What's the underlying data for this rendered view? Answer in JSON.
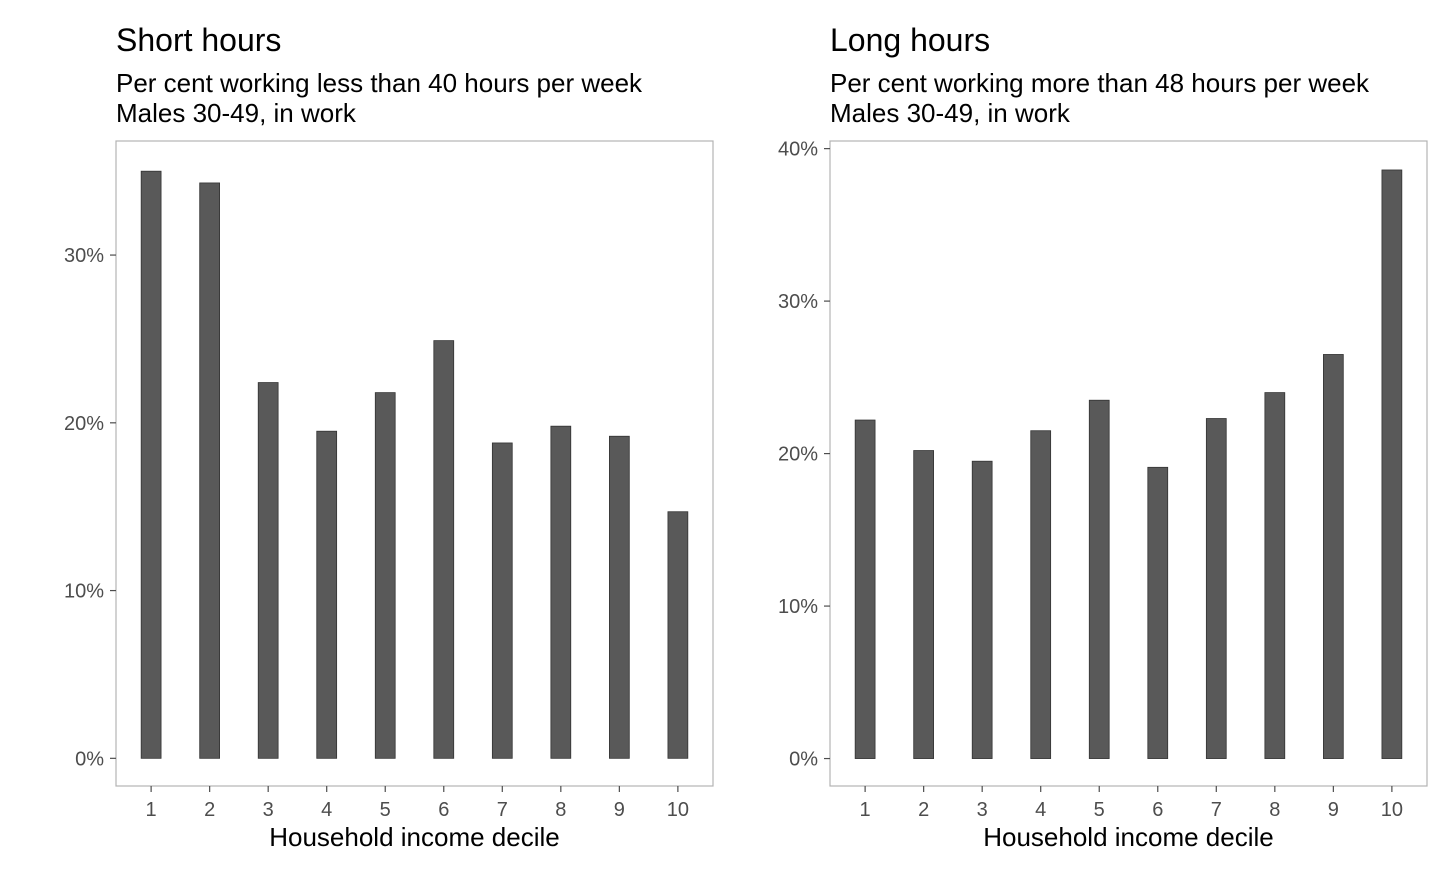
{
  "chart_data": [
    {
      "type": "bar",
      "title": "Short hours",
      "subtitle": [
        "Per cent working less than 40 hours per week",
        "Males 30-49, in work"
      ],
      "xlabel": "Household income decile",
      "ylabel": "",
      "categories": [
        "1",
        "2",
        "3",
        "4",
        "5",
        "6",
        "7",
        "8",
        "9",
        "10"
      ],
      "values": [
        35.0,
        34.3,
        22.4,
        19.5,
        21.8,
        24.9,
        18.8,
        19.8,
        19.2,
        14.7
      ],
      "yticks": [
        0,
        10,
        20,
        30
      ],
      "ytick_labels": [
        "0%",
        "10%",
        "20%",
        "30%"
      ],
      "ylim": [
        -1.65,
        36.8
      ],
      "bar_color": "#595959",
      "grid": false
    },
    {
      "type": "bar",
      "title": "Long hours",
      "subtitle": [
        "Per cent working more than 48 hours per week",
        "Males 30-49, in work"
      ],
      "xlabel": "Household income decile",
      "ylabel": "",
      "categories": [
        "1",
        "2",
        "3",
        "4",
        "5",
        "6",
        "7",
        "8",
        "9",
        "10"
      ],
      "values": [
        22.2,
        20.2,
        19.5,
        21.5,
        23.5,
        19.1,
        22.3,
        24.0,
        26.5,
        38.6
      ],
      "yticks": [
        0,
        10,
        20,
        30,
        40
      ],
      "ytick_labels": [
        "0%",
        "10%",
        "20%",
        "30%",
        "40%"
      ],
      "ylim": [
        -1.8,
        40.5
      ],
      "bar_color": "#595959",
      "grid": false
    }
  ]
}
